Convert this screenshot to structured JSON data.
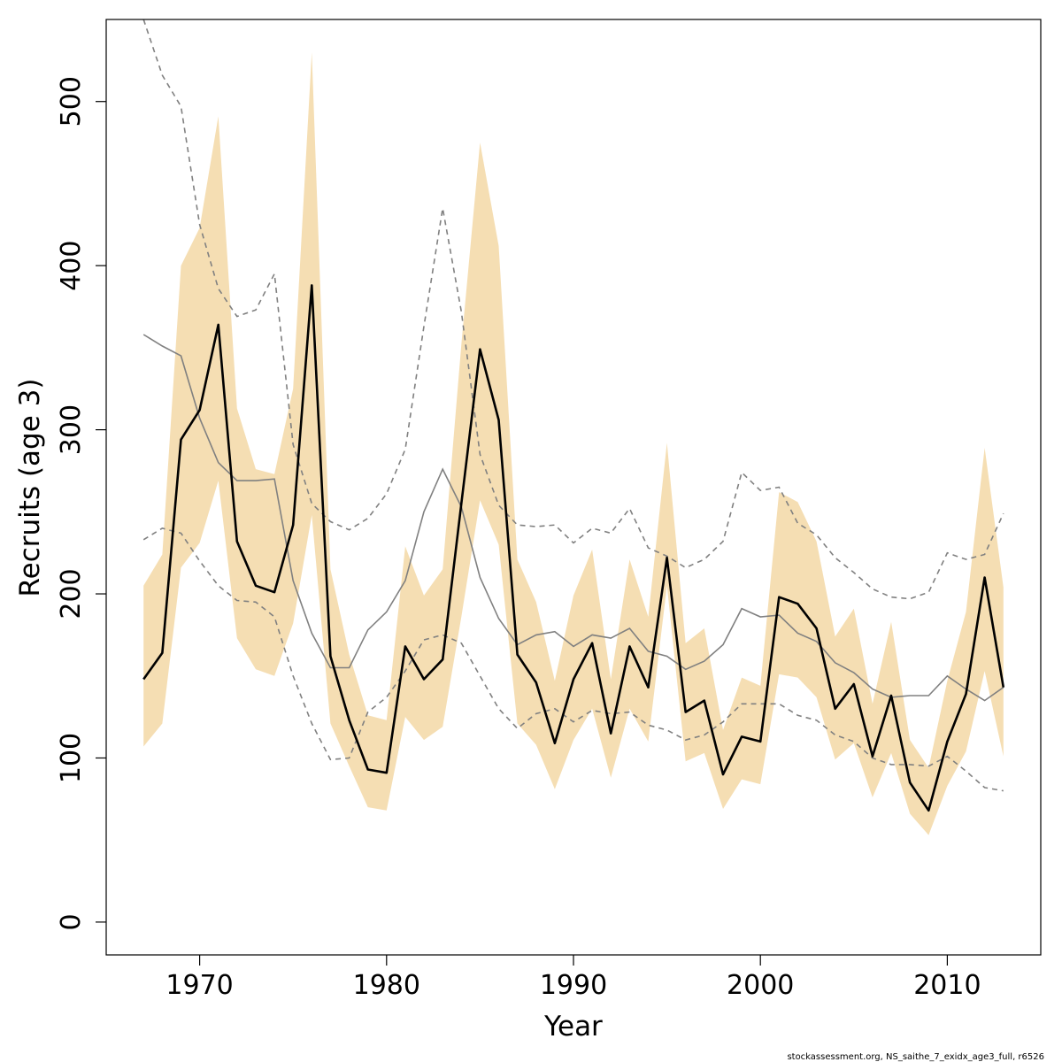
{
  "chart_data": {
    "type": "line",
    "xlabel": "Year",
    "ylabel": "Recruits (age 3)",
    "footer": "stockassessment.org, NS_saithe_7_exidx_age3_full, r6526",
    "xlim": [
      1965,
      2015
    ],
    "ylim": [
      -20,
      550
    ],
    "xticks": [
      1970,
      1980,
      1990,
      2000,
      2010
    ],
    "yticks": [
      0,
      100,
      200,
      300,
      400,
      500
    ],
    "grid": false,
    "legend": "none",
    "colors": {
      "band": "#f5deb3",
      "main": "#000000",
      "reference": "#808080",
      "reference_bounds": "#808080"
    },
    "x": [
      1967,
      1968,
      1969,
      1970,
      1971,
      1972,
      1973,
      1974,
      1975,
      1976,
      1977,
      1978,
      1979,
      1980,
      1981,
      1982,
      1983,
      1984,
      1985,
      1986,
      1987,
      1988,
      1989,
      1990,
      1991,
      1992,
      1993,
      1994,
      1995,
      1996,
      1997,
      1998,
      1999,
      2000,
      2001,
      2002,
      2003,
      2004,
      2005,
      2006,
      2007,
      2008,
      2009,
      2010,
      2011,
      2012,
      2013
    ],
    "series": [
      {
        "role": "confidence-band",
        "lower": [
          107,
          121,
          216,
          231,
          269,
          173,
          154,
          150,
          182,
          248,
          121,
          95,
          70,
          68,
          125,
          111,
          119,
          186,
          257,
          230,
          121,
          108,
          81,
          111,
          130,
          88,
          130,
          110,
          205,
          98,
          103,
          69,
          87,
          84,
          151,
          149,
          137,
          99,
          109,
          76,
          103,
          66,
          53,
          83,
          104,
          153,
          101
        ],
        "upper": [
          205,
          224,
          400,
          423,
          491,
          313,
          276,
          273,
          325,
          530,
          215,
          163,
          126,
          123,
          229,
          199,
          215,
          352,
          475,
          412,
          221,
          195,
          147,
          199,
          227,
          148,
          221,
          186,
          292,
          170,
          179,
          117,
          149,
          144,
          262,
          256,
          232,
          174,
          191,
          133,
          183,
          111,
          94,
          147,
          189,
          289,
          204
        ]
      },
      {
        "role": "estimate",
        "values": [
          148,
          164,
          294,
          312,
          364,
          232,
          205,
          201,
          242,
          388,
          162,
          123,
          93,
          91,
          168,
          148,
          160,
          255,
          349,
          306,
          163,
          146,
          109,
          148,
          170,
          115,
          168,
          143,
          222,
          128,
          135,
          90,
          113,
          110,
          198,
          194,
          179,
          130,
          145,
          101,
          138,
          85,
          68,
          110,
          139,
          210,
          143
        ]
      },
      {
        "role": "reference",
        "values": [
          358,
          351,
          345,
          307,
          280,
          269,
          269,
          270,
          208,
          176,
          155,
          155,
          178,
          189,
          208,
          250,
          276,
          253,
          210,
          185,
          169,
          175,
          177,
          168,
          175,
          173,
          179,
          165,
          162,
          154,
          159,
          169,
          191,
          186,
          187,
          176,
          171,
          158,
          152,
          142,
          137,
          138,
          138,
          150,
          142,
          135,
          143
        ]
      },
      {
        "role": "reference-upper",
        "values": [
          550,
          516,
          497,
          425,
          386,
          369,
          373,
          395,
          291,
          255,
          244,
          239,
          246,
          261,
          288,
          363,
          435,
          372,
          285,
          254,
          242,
          241,
          242,
          231,
          240,
          237,
          252,
          228,
          223,
          216,
          221,
          232,
          274,
          263,
          265,
          243,
          236,
          222,
          213,
          203,
          198,
          197,
          201,
          225,
          221,
          224,
          249
        ]
      },
      {
        "role": "reference-lower",
        "values": [
          233,
          240,
          237,
          220,
          205,
          196,
          195,
          186,
          150,
          121,
          99,
          100,
          128,
          137,
          153,
          172,
          175,
          170,
          150,
          130,
          118,
          127,
          130,
          122,
          129,
          127,
          128,
          120,
          117,
          111,
          114,
          122,
          133,
          133,
          133,
          126,
          123,
          114,
          110,
          100,
          96,
          96,
          95,
          101,
          92,
          82,
          80
        ]
      }
    ]
  }
}
